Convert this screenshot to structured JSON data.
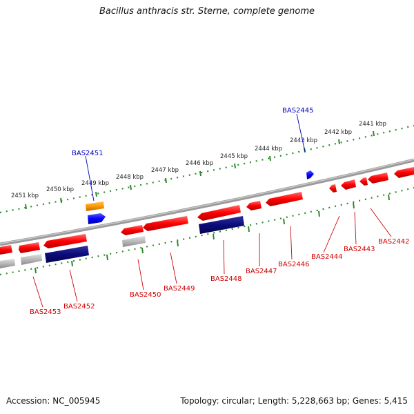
{
  "title": "Bacillus anthracis str. Sterne, complete genome",
  "footer": {
    "accession": "Accession: NC_005945",
    "summary": "Topology: circular; Length: 5,228,663 bp; Genes: 5,415"
  },
  "colors": {
    "backbone": "#808080",
    "scale": "#2a8a2a",
    "gene_red": "#ff0000",
    "gene_gray": "#b0b0b0",
    "gene_navy": "#0b0b7a",
    "gene_orange": "#ff9900",
    "gene_blue": "#0000ff",
    "label_red": "#d00000",
    "label_blue": "#0000c0"
  },
  "scale_labels": [
    "2451 kbp",
    "2450 kbp",
    "2449 kbp",
    "2448 kbp",
    "2447 kbp",
    "2446 kbp",
    "2445 kbp",
    "2444 kbp",
    "2443 kbp",
    "2442 kbp",
    "2441 kbp"
  ],
  "gene_labels": {
    "outer": [
      "BAS2451",
      "BAS2445"
    ],
    "inner": [
      "BAS2453",
      "BAS2452",
      "BAS2450",
      "BAS2449",
      "BAS2448",
      "BAS2447",
      "BAS2446",
      "BAS2444",
      "BAS2443",
      "BAS2442"
    ]
  }
}
